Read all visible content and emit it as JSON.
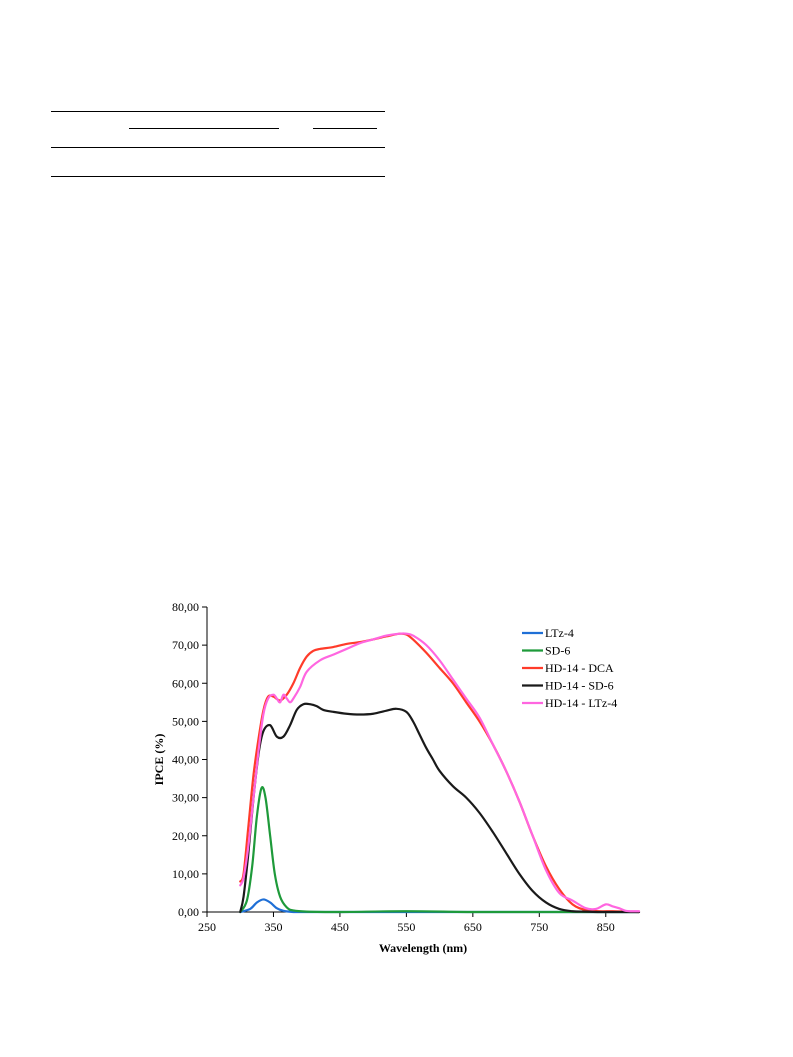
{
  "table_rules": [
    {
      "name": "table-top-rule"
    },
    {
      "name": "table-group-rule-1"
    },
    {
      "name": "table-group-rule-2"
    },
    {
      "name": "table-header-rule"
    },
    {
      "name": "table-bottom-rule"
    }
  ],
  "chart_data": {
    "type": "line",
    "xlabel": "Wavelength (nm)",
    "ylabel": "IPCE (%)",
    "xlim": [
      250,
      900
    ],
    "ylim": [
      0,
      80
    ],
    "xticks": [
      250,
      350,
      450,
      550,
      650,
      750,
      850
    ],
    "xtick_labels": [
      "250",
      "350",
      "450",
      "550",
      "650",
      "750",
      "850"
    ],
    "yticks": [
      0,
      10,
      20,
      30,
      40,
      50,
      60,
      70,
      80
    ],
    "ytick_labels": [
      "0,00",
      "10,00",
      "20,00",
      "30,00",
      "40,00",
      "50,00",
      "60,00",
      "70,00",
      "80,00"
    ],
    "grid": false,
    "legend_position": "top-right",
    "series": [
      {
        "name": "LTz-4",
        "color": "#1f6fd6",
        "x": [
          300,
          315,
          325,
          335,
          345,
          355,
          365,
          380,
          400,
          500,
          600,
          700,
          800,
          900
        ],
        "y": [
          0,
          0.8,
          2.5,
          3.3,
          2.5,
          1.0,
          0.3,
          0,
          0,
          0,
          0,
          0,
          0,
          0
        ]
      },
      {
        "name": "SD-6",
        "color": "#1e9a3a",
        "x": [
          300,
          310,
          318,
          325,
          332,
          338,
          345,
          352,
          360,
          370,
          380,
          400,
          450,
          550,
          650,
          750,
          850,
          900
        ],
        "y": [
          0,
          3,
          12,
          25,
          32.5,
          30,
          20,
          10,
          4,
          1.2,
          0.4,
          0.1,
          0,
          0.2,
          0,
          0,
          0,
          0
        ]
      },
      {
        "name": "HD-14 - DCA",
        "color": "#ff3b2a",
        "x": [
          300,
          305,
          312,
          320,
          328,
          335,
          342,
          350,
          360,
          370,
          380,
          390,
          400,
          410,
          420,
          440,
          460,
          480,
          500,
          520,
          540,
          550,
          560,
          580,
          600,
          620,
          640,
          660,
          680,
          700,
          720,
          740,
          760,
          780,
          800,
          820,
          840,
          860,
          880,
          900
        ],
        "y": [
          8,
          10,
          22,
          36,
          46,
          53,
          56.5,
          56.5,
          55.5,
          57,
          60,
          64,
          67,
          68.5,
          69,
          69.5,
          70.3,
          70.8,
          71.5,
          72.3,
          73,
          72.8,
          71.5,
          68,
          64,
          60,
          55,
          50,
          44,
          37,
          29,
          20,
          12,
          6,
          2,
          0.5,
          0.2,
          0.2,
          0.1,
          0
        ]
      },
      {
        "name": "HD-14 - SD-6",
        "color": "#1a1a1a",
        "x": [
          300,
          305,
          312,
          320,
          328,
          335,
          345,
          355,
          365,
          375,
          385,
          395,
          405,
          415,
          425,
          440,
          460,
          480,
          500,
          520,
          535,
          550,
          560,
          570,
          580,
          590,
          600,
          620,
          640,
          660,
          680,
          700,
          720,
          740,
          760,
          780,
          800,
          820,
          840,
          860,
          880,
          900
        ],
        "y": [
          0,
          4,
          15,
          30,
          42,
          47.5,
          49,
          46,
          46,
          49,
          53,
          54.5,
          54.5,
          54,
          53,
          52.5,
          52,
          51.8,
          52,
          52.8,
          53.3,
          52.5,
          50,
          46.5,
          43,
          40,
          37,
          33,
          30,
          26,
          21,
          15.5,
          10,
          5.5,
          2.5,
          0.8,
          0.2,
          0.1,
          0,
          0,
          0,
          0
        ]
      },
      {
        "name": "HD-14 - LTz-4",
        "color": "#ff66e0",
        "x": [
          300,
          305,
          312,
          320,
          328,
          335,
          342,
          350,
          355,
          360,
          365,
          370,
          375,
          380,
          390,
          400,
          420,
          440,
          460,
          480,
          500,
          520,
          540,
          550,
          560,
          580,
          600,
          620,
          640,
          660,
          680,
          700,
          720,
          740,
          760,
          780,
          800,
          820,
          835,
          850,
          860,
          870,
          880,
          890,
          900
        ],
        "y": [
          7,
          9,
          17,
          30,
          43,
          52,
          56,
          57,
          56,
          55,
          57,
          56,
          55,
          56,
          59,
          63,
          66,
          67.5,
          69,
          70.5,
          71.5,
          72.5,
          73,
          73,
          72.5,
          70,
          66,
          61,
          56,
          51,
          44,
          37,
          29,
          20,
          11,
          5,
          3,
          1,
          0.8,
          2,
          1.5,
          1,
          0.3,
          0.2,
          0.2
        ]
      }
    ]
  }
}
